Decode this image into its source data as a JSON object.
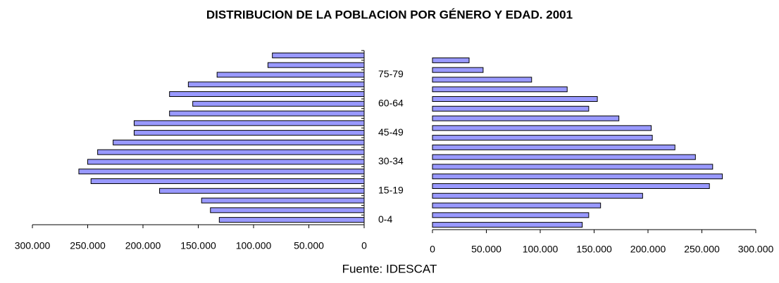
{
  "title": "DISTRIBUCION DE LA POBLACION POR GÉNERO Y EDAD. 2001",
  "source": "Fuente: IDESCAT",
  "chart_data": [
    {
      "type": "bar",
      "orientation": "horizontal",
      "x_reversed": true,
      "color": "#9999ff",
      "categories": [
        "0-4",
        null,
        null,
        "15-19",
        null,
        null,
        "30-34",
        null,
        null,
        "45-49",
        null,
        null,
        "60-64",
        null,
        null,
        "75-79",
        null,
        null
      ],
      "values": [
        131000,
        139000,
        147000,
        185000,
        247000,
        258000,
        250000,
        241000,
        227000,
        208000,
        208000,
        176000,
        155000,
        176000,
        159000,
        133000,
        87000,
        83000
      ],
      "xlim": [
        0,
        300000
      ],
      "xticks": [
        {
          "value": 300000,
          "label": "300.000"
        },
        {
          "value": 250000,
          "label": "250.000"
        },
        {
          "value": 200000,
          "label": "200.000"
        },
        {
          "value": 150000,
          "label": "150.000"
        },
        {
          "value": 100000,
          "label": "100.000"
        },
        {
          "value": 50000,
          "label": "50.000"
        },
        0
      ]
    },
    {
      "type": "bar",
      "orientation": "horizontal",
      "x_reversed": false,
      "color": "#9999ff",
      "values": [
        139000,
        145000,
        156000,
        195000,
        257000,
        269000,
        260000,
        244000,
        225000,
        204000,
        203000,
        173000,
        145000,
        153000,
        125000,
        92000,
        47000,
        34000
      ],
      "xlim": [
        0,
        300000
      ],
      "xticks": [
        0,
        {
          "value": 50000,
          "label": "50.000"
        },
        {
          "value": 100000,
          "label": "100.000"
        },
        {
          "value": 150000,
          "label": "150.000"
        },
        {
          "value": 200000,
          "label": "200.000"
        },
        {
          "value": 250000,
          "label": "250.000"
        },
        {
          "value": 300000,
          "label": "300.000"
        }
      ]
    }
  ]
}
